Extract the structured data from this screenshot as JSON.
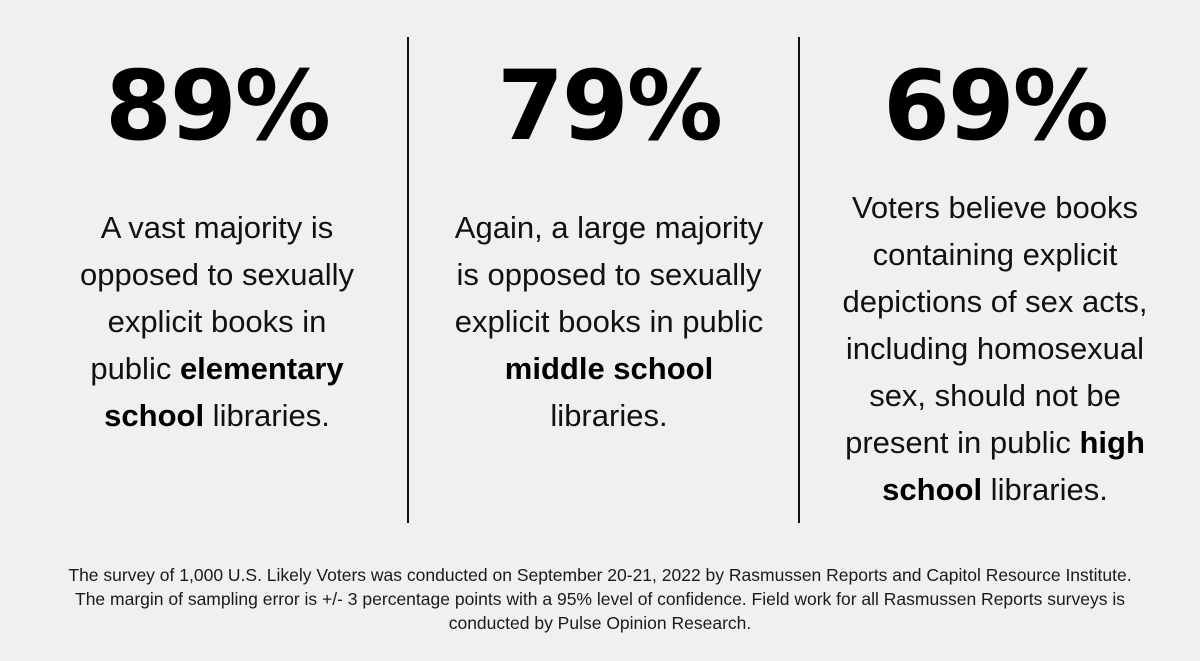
{
  "columns": [
    {
      "stat": "89%",
      "text_before": "A vast majority is opposed to sexually explicit books in public ",
      "bold": "elementary school",
      "text_after": " libraries."
    },
    {
      "stat": "79%",
      "text_before": "Again, a large majority is opposed to sexually explicit books in public ",
      "bold": "middle school",
      "text_after": " libraries."
    },
    {
      "stat": "69%",
      "text_before": "Voters believe books containing explicit depictions of sex acts, including homosexual sex, should not be present in public ",
      "bold": "high school",
      "text_after": " libraries."
    }
  ],
  "footnote": "The survey of 1,000 U.S. Likely Voters was conducted on September 20-21, 2022 by Rasmussen Reports and Capitol Resource Institute. The margin of sampling error is +/- 3 percentage points with a 95% level of confidence. Field work for all Rasmussen Reports surveys is conducted by Pulse Opinion Research.",
  "colors": {
    "background": "#f1f0ef",
    "text": "#000000",
    "divider": "#111111"
  }
}
